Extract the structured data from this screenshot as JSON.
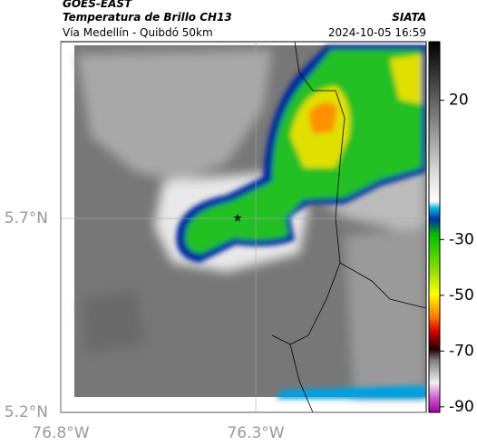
{
  "header": {
    "satellite": "GOES-EAST",
    "product": "Temperatura de Brillo CH13",
    "region": "Vía Medellín - Quibdó 50km",
    "source": "SIATA",
    "datetime": "2024-10-05 16:59"
  },
  "map": {
    "xlim": [
      -76.8,
      -75.863
    ],
    "ylim": [
      5.2,
      6.156
    ],
    "xticks": [
      {
        "value": -76.8,
        "label": "76.8°W"
      },
      {
        "value": -76.3,
        "label": "76.3°W"
      }
    ],
    "yticks": [
      {
        "value": 5.2,
        "label": "5.2°N"
      },
      {
        "value": 5.7,
        "label": "5.7°N"
      }
    ]
  },
  "colorbar": {
    "lim": [
      -92,
      41
    ],
    "ticks": [
      20,
      -30,
      -50,
      -70,
      -90
    ]
  }
}
